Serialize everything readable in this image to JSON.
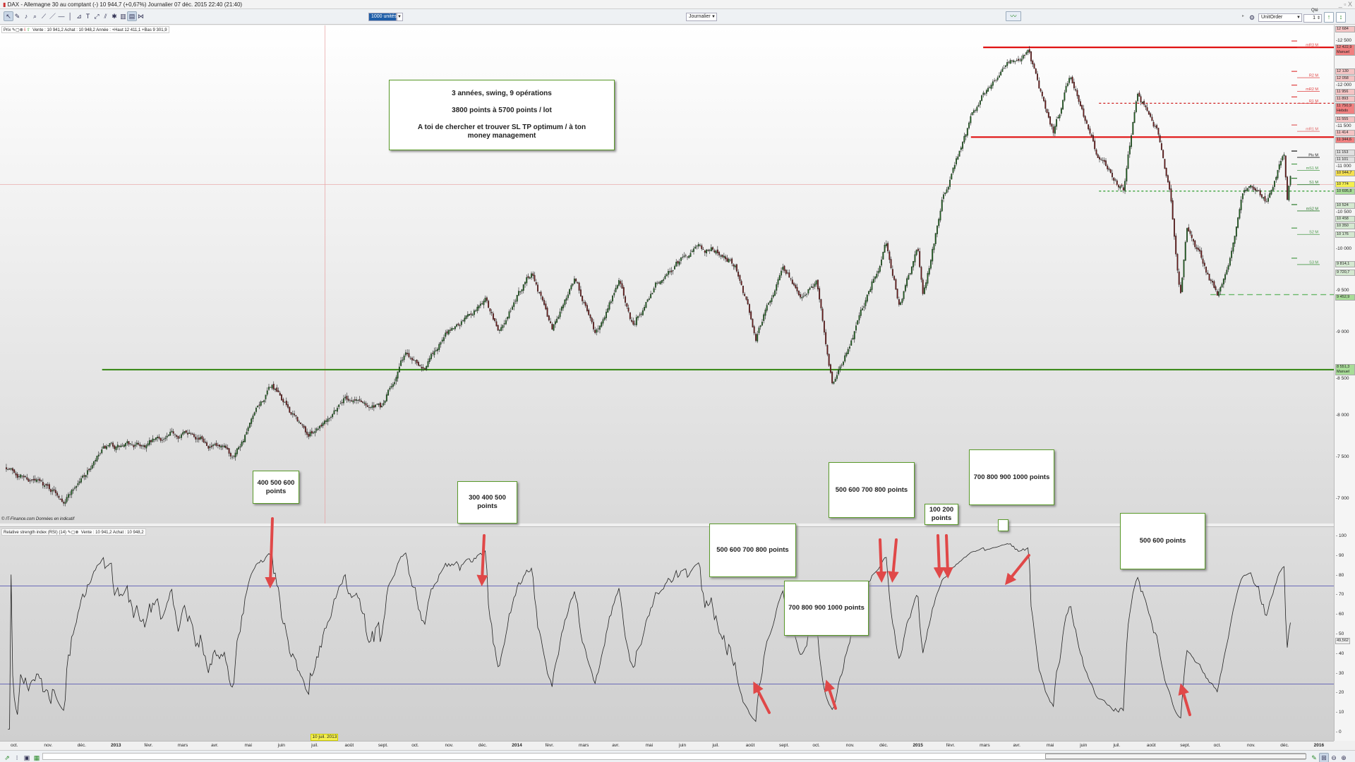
{
  "window": {
    "title": "DAX - Allemagne 30 au comptant (-)   10 944,7 (+0,67%)   Journalier  07 déc. 2015 22:40 (21:40)",
    "controls": "_ ▫ X"
  },
  "toolbar": {
    "tools": [
      "cursor-icon",
      "pencil-icon",
      "alert-bell-icon",
      "zoom-icon",
      "trend-line-icon",
      "line-icon",
      "horizontal-line-icon",
      "vertical-line-icon",
      "fibonacci-icon",
      "text-icon",
      "channel-icon",
      "parallel-icon",
      "magic-icon",
      "trash-icon",
      "indicator-icon",
      "pattern-icon"
    ],
    "quantity_select": "1000 unités",
    "period_select": "Journalier",
    "order_type_select": "UnitOrder",
    "qty_label": "Qté",
    "qty_value": "1"
  },
  "price_pane": {
    "header_label": "Prix",
    "header_values": "Vente : 10 941,2 Achat : 10 948,2 Année : +Haut 12 411,1 +Bas 9 301,9",
    "footer": "© IT-Finance.com Données en indicatif",
    "axis_ticks": [
      7000,
      7500,
      8000,
      8500,
      9000,
      9500,
      10000,
      10500,
      11000,
      11500,
      12000,
      12500
    ],
    "price_labels": [
      {
        "v": 12684,
        "t": "12 684",
        "c": "#f4c4c4"
      },
      {
        "v": 12422.9,
        "t": "12 422,9 Manuel",
        "c": "#f08080"
      },
      {
        "v": 12130,
        "t": "12 130",
        "c": "#f4c4c4"
      },
      {
        "v": 12058,
        "t": "12 058",
        "c": "#f4c4c4"
      },
      {
        "v": 11956,
        "t": "11 956",
        "c": "#f4c4c4"
      },
      {
        "v": 11893,
        "t": "11 893",
        "c": "#f4c4c4"
      },
      {
        "v": 11750.9,
        "t": "11 750,9 Hebdo",
        "c": "#f08080"
      },
      {
        "v": 11555,
        "t": "11 555",
        "c": "#f4c4c4"
      },
      {
        "v": 11414,
        "t": "11 414",
        "c": "#f4c4c4"
      },
      {
        "v": 11344.6,
        "t": "11 344,6",
        "c": "#f08080"
      },
      {
        "v": 11153,
        "t": "11 153",
        "c": "#e0e0e0"
      },
      {
        "v": 11101,
        "t": "11 101",
        "c": "#e0e0e0"
      },
      {
        "v": 10944.7,
        "t": "10 944,7",
        "c": "#f5e050"
      },
      {
        "v": 10774,
        "t": "10 774",
        "c": "#f5f050"
      },
      {
        "v": 10695.8,
        "t": "10 695,8",
        "c": "#a8dc98"
      },
      {
        "v": 10524,
        "t": "10 524",
        "c": "#d4e8d0"
      },
      {
        "v": 10458,
        "t": "10 458",
        "c": "#d4e8d0"
      },
      {
        "v": 10350,
        "t": "10 350",
        "c": "#d4e8d0"
      },
      {
        "v": 10176,
        "t": "10 176",
        "c": "#d4e8d0"
      },
      {
        "v": 9814.1,
        "t": "9 814,1",
        "c": "#d4e8d0"
      },
      {
        "v": 9720.7,
        "t": "9 720,7",
        "c": "#d4e8d0"
      },
      {
        "v": 9452.9,
        "t": "9 452,9",
        "c": "#a8dc98"
      },
      {
        "v": 8551.3,
        "t": "8 551,3 Manuel",
        "c": "#a8dc98"
      }
    ],
    "pivots": [
      {
        "v": 12422.9,
        "t": "mR3 M",
        "c": "#e04040"
      },
      {
        "v": 12058,
        "t": "R2 M",
        "c": "#e04040"
      },
      {
        "v": 11893,
        "t": "mR2 M",
        "c": "#e04040"
      },
      {
        "v": 11750.9,
        "t": "R1 M",
        "c": "#e04040"
      },
      {
        "v": 11414,
        "t": "mR1 M",
        "c": "#e06060"
      },
      {
        "v": 11101,
        "t": "Piv M",
        "c": "#111111"
      },
      {
        "v": 10944.7,
        "t": "mS1 M",
        "c": "#4a9a4a"
      },
      {
        "v": 10774,
        "t": "S1 M",
        "c": "#2a7a2a"
      },
      {
        "v": 10458,
        "t": "mS2 M",
        "c": "#2a7a2a"
      },
      {
        "v": 10176,
        "t": "S2 M",
        "c": "#4a9a4a"
      },
      {
        "v": 9814.1,
        "t": "S3 M",
        "c": "#4a9a4a"
      }
    ],
    "levels": [
      {
        "v": 12422.9,
        "from": "2015-03-01",
        "style": "solid",
        "c": "#e01010"
      },
      {
        "v": 11344.6,
        "from": "2015-02-20",
        "style": "solid",
        "c": "#e01010"
      },
      {
        "v": 11750.9,
        "from": "2015-06-15",
        "style": "dashed",
        "c": "#d02020"
      },
      {
        "v": 10695.8,
        "from": "2015-06-15",
        "style": "dashed",
        "c": "#2a9a2a"
      },
      {
        "v": 9452.9,
        "from": "2015-09-25",
        "style": "dashed-light",
        "c": "#6ab86a"
      },
      {
        "v": 8551.3,
        "from": "2012-12-20",
        "style": "solid",
        "c": "#3a8a1a"
      }
    ],
    "crosshair": {
      "date_label": "10 juil. 2013",
      "price": 10774
    }
  },
  "annotation_main": {
    "line1": "3 années, swing, 9 opérations",
    "line2": "3800 points à 5700 points / lot",
    "line3": "A toi de chercher et trouver SL TP optimum / à ton money management"
  },
  "rsi_pane": {
    "header_label": "Relative strength index (RSI) (14)",
    "header_values": "Vente : 10 941,2 Achat : 10 948,2",
    "levels": [
      75,
      25
    ],
    "ticks": [
      0,
      10,
      20,
      30,
      40,
      50,
      60,
      70,
      80,
      90,
      100
    ],
    "current": "49,562",
    "line_color": "#6a6ab8"
  },
  "annotations": [
    {
      "text": "400 500 600 points"
    },
    {
      "text": "300 400 500 points"
    },
    {
      "text": "500 600 700 800 points"
    },
    {
      "text": "700 800 900 1000 points"
    },
    {
      "text": "500 600 700 800 points"
    },
    {
      "text": "100 200 points"
    },
    {
      "text": "700 800 900 1000 points"
    },
    {
      "text": "500 600 points"
    }
  ],
  "date_axis": [
    "oct.",
    "nov.",
    "déc.",
    "2013",
    "févr.",
    "mars",
    "avr.",
    "mai",
    "juin",
    "juil.",
    "août",
    "sept.",
    "oct.",
    "nov.",
    "déc.",
    "2014",
    "févr.",
    "mars",
    "avr.",
    "mai",
    "juin",
    "juil.",
    "août",
    "sept.",
    "oct.",
    "nov.",
    "déc.",
    "2015",
    "févr.",
    "mars",
    "avr.",
    "mai",
    "juin",
    "juil.",
    "août",
    "sept.",
    "oct.",
    "nov.",
    "déc.",
    "2016"
  ],
  "chart_data": {
    "type": "candlestick",
    "instrument": "DAX - Allemagne 30 au comptant",
    "period": "Journalier",
    "price_path_approx": [
      [
        "2012-09-24",
        7390
      ],
      [
        "2012-11-16",
        7025
      ],
      [
        "2012-12-22",
        7570
      ],
      [
        "2013-01-26",
        7640
      ],
      [
        "2013-03-12",
        7830
      ],
      [
        "2013-04-16",
        7490
      ],
      [
        "2013-05-22",
        8340
      ],
      [
        "2013-06-25",
        7750
      ],
      [
        "2013-07-28",
        8250
      ],
      [
        "2013-09-01",
        8080
      ],
      [
        "2013-09-22",
        8740
      ],
      [
        "2013-10-10",
        8640
      ],
      [
        "2013-11-01",
        9000
      ],
      [
        "2013-12-04",
        9410
      ],
      [
        "2013-12-16",
        9000
      ],
      [
        "2014-01-16",
        9750
      ],
      [
        "2014-02-04",
        9050
      ],
      [
        "2014-02-24",
        9690
      ],
      [
        "2014-03-13",
        8970
      ],
      [
        "2014-04-04",
        9610
      ],
      [
        "2014-04-16",
        9100
      ],
      [
        "2014-05-07",
        9610
      ],
      [
        "2014-06-10",
        9985
      ],
      [
        "2014-07-01",
        9985
      ],
      [
        "2014-07-19",
        9830
      ],
      [
        "2014-08-07",
        8960
      ],
      [
        "2014-09-01",
        9830
      ],
      [
        "2014-09-19",
        9410
      ],
      [
        "2014-10-01",
        9600
      ],
      [
        "2014-10-16",
        8370
      ],
      [
        "2014-11-07",
        9070
      ],
      [
        "2014-12-04",
        10080
      ],
      [
        "2014-12-16",
        9340
      ],
      [
        "2015-01-02",
        10000
      ],
      [
        "2015-01-07",
        9430
      ],
      [
        "2015-01-25",
        10640
      ],
      [
        "2015-02-22",
        11650
      ],
      [
        "2015-03-19",
        12210
      ],
      [
        "2015-04-12",
        12370
      ],
      [
        "2015-04-22",
        11890
      ],
      [
        "2015-05-04",
        11400
      ],
      [
        "2015-05-19",
        12050
      ],
      [
        "2015-06-13",
        11130
      ],
      [
        "2015-07-07",
        10700
      ],
      [
        "2015-07-19",
        11890
      ],
      [
        "2015-08-07",
        11450
      ],
      [
        "2015-08-19",
        10640
      ],
      [
        "2015-08-28",
        9430
      ],
      [
        "2015-09-04",
        10270
      ],
      [
        "2015-09-16",
        9900
      ],
      [
        "2015-10-01",
        9430
      ],
      [
        "2015-10-13",
        9985
      ],
      [
        "2015-10-25",
        10770
      ],
      [
        "2015-11-16",
        10560
      ],
      [
        "2015-12-01",
        11220
      ],
      [
        "2015-12-04",
        10640
      ],
      [
        "2015-12-07",
        10944.7
      ]
    ],
    "ylim": [
      6900,
      12750
    ],
    "rsi_ylim": [
      0,
      100
    ]
  }
}
